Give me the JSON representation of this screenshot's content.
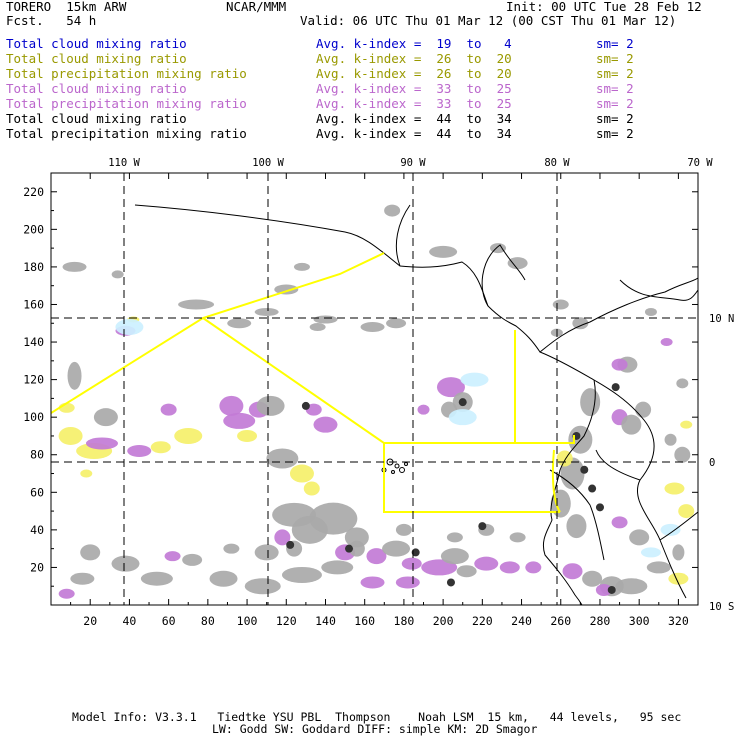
{
  "header": {
    "model": "TORERO  15km ARW",
    "org": "NCAR/MMM",
    "init": "Init: 00 UTC Tue 28 Feb 12",
    "fcst": "Fcst.   54 h",
    "valid": "Valid: 06 UTC Thu 01 Mar 12 (00 CST Thu 01 Mar 12)"
  },
  "legend": [
    {
      "field": "Total cloud mixing ratio",
      "kindex": "Avg. k-index =  19  to   4",
      "sm": "sm= 2",
      "color": "#0000cc"
    },
    {
      "field": "Total cloud mixing ratio",
      "kindex": "Avg. k-index =  26  to  20",
      "sm": "sm= 2",
      "color": "#999900"
    },
    {
      "field": "Total precipitation mixing ratio",
      "kindex": "Avg. k-index =  26  to  20",
      "sm": "sm= 2",
      "color": "#999900"
    },
    {
      "field": "Total cloud mixing ratio",
      "kindex": "Avg. k-index =  33  to  25",
      "sm": "sm= 2",
      "color": "#bb66cc"
    },
    {
      "field": "Total precipitation mixing ratio",
      "kindex": "Avg. k-index =  33  to  25",
      "sm": "sm= 2",
      "color": "#bb66cc"
    },
    {
      "field": "Total cloud mixing ratio",
      "kindex": "Avg. k-index =  44  to  34",
      "sm": "sm= 2",
      "color": "#000000"
    },
    {
      "field": "Total precipitation mixing ratio",
      "kindex": "Avg. k-index =  44  to  34",
      "sm": "sm= 2",
      "color": "#000000"
    }
  ],
  "footer": {
    "line1": "Model Info: V3.3.1   Tiedtke YSU PBL  Thompson    Noah LSM  15 km,   44 levels,   95 sec",
    "line2": "LW: Godd SW: Goddard DIFF: simple KM: 2D Smagor"
  },
  "chart_data": {
    "type": "map",
    "x_ticks": [
      "20",
      "40",
      "60",
      "80",
      "100",
      "120",
      "140",
      "160",
      "180",
      "200",
      "220",
      "240",
      "260",
      "280",
      "300",
      "320"
    ],
    "y_ticks": [
      "20",
      "40",
      "60",
      "80",
      "100",
      "120",
      "140",
      "160",
      "180",
      "200",
      "220"
    ],
    "lon_labels": [
      "110 W",
      "100 W",
      "90 W",
      "80 W",
      "70 W"
    ],
    "lat_labels": [
      "10 N",
      "0",
      "10 S"
    ],
    "grid": "dashed lat/lon lines every 10 degrees",
    "colors": {
      "cloud_light": "#ccf0ff",
      "cloud_yellow": "#f5f06a",
      "cloud_purple": "#c27bd6",
      "cloud_gray": "#a9a9a9",
      "flight_track": "#ffff00",
      "coast": "#000000"
    }
  }
}
